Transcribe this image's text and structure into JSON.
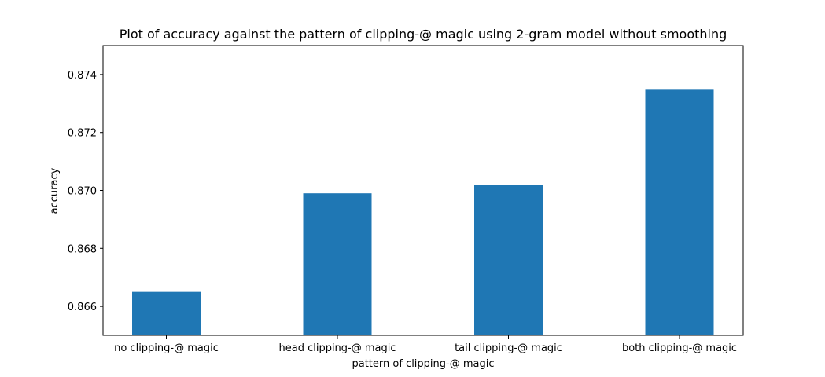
{
  "chart_data": {
    "type": "bar",
    "title": "Plot of accuracy against the pattern of clipping-@ magic using 2-gram model without smoothing",
    "xlabel": "pattern of clipping-@ magic",
    "ylabel": "accuracy",
    "categories": [
      "no clipping-@ magic",
      "head clipping-@ magic",
      "tail clipping-@ magic",
      "both clipping-@ magic"
    ],
    "values": [
      0.8665,
      0.8699,
      0.8702,
      0.8735
    ],
    "ylim": [
      0.865,
      0.875
    ],
    "yticks": [
      0.866,
      0.868,
      0.87,
      0.872,
      0.874
    ],
    "ytick_labels": [
      "0.866",
      "0.868",
      "0.870",
      "0.872",
      "0.874"
    ],
    "grid": false,
    "bar_color": "#1f77b4"
  }
}
